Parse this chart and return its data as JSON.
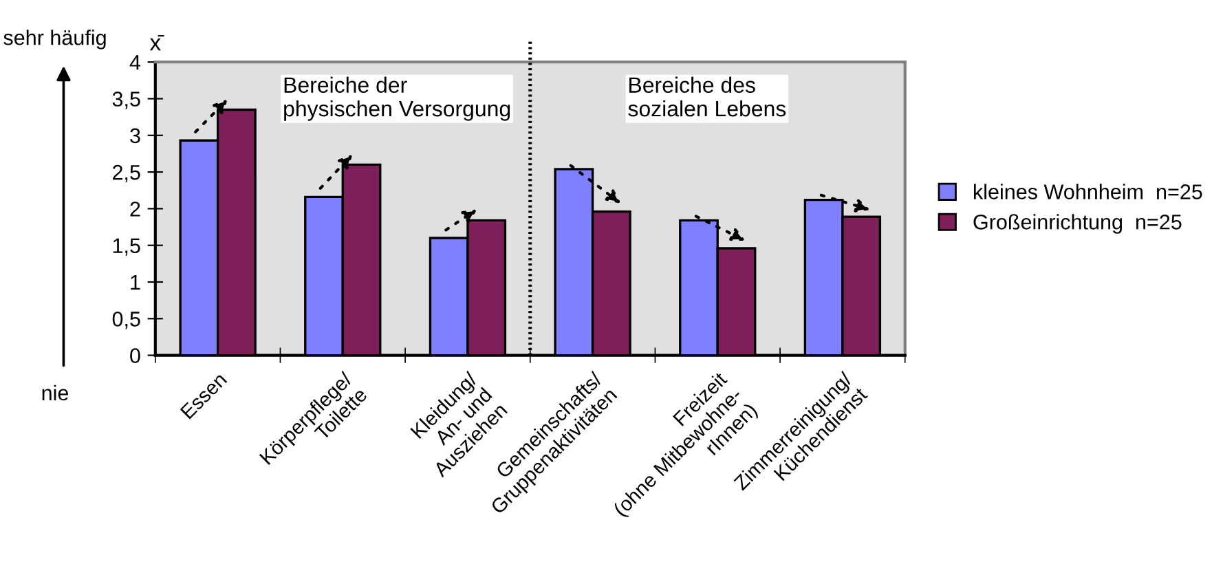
{
  "chart_data": {
    "type": "bar",
    "categories": [
      "Essen",
      "Körperpflege/\nToilette",
      "Kleidung/\nAn- und\nAusziehen",
      "Gemeinschafts/\nGruppenaktivitäten",
      "Freizeit\n(ohne Mitbewohne-\nrInnen)",
      "Zimmerreinigung/\nKüchendienst"
    ],
    "series": [
      {
        "name": "kleines Wohnheim  n=25",
        "color": "#8080ff",
        "values": [
          2.93,
          2.16,
          1.6,
          2.54,
          1.84,
          2.12
        ]
      },
      {
        "name": "Großeinrichtung  n=25",
        "color": "#7f1f5a",
        "values": [
          3.35,
          2.6,
          1.84,
          1.96,
          1.46,
          1.89
        ]
      }
    ],
    "ylabel": "x̄",
    "ylim": [
      0,
      4
    ],
    "yticks": [
      0,
      {
        "value": 0.5,
        "label": "0,5"
      },
      1,
      {
        "value": 1.5,
        "label": "1,5"
      },
      2,
      {
        "value": 2.5,
        "label": "2,5"
      },
      3,
      {
        "value": 3.5,
        "label": "3,5"
      },
      4
    ],
    "annotations": [
      "Bereiche der\nphysischen Versorgung",
      "Bereiche des\nsozialen Lebens",
      "sehr häufig",
      "nie"
    ],
    "legend": "right",
    "grid": false
  }
}
